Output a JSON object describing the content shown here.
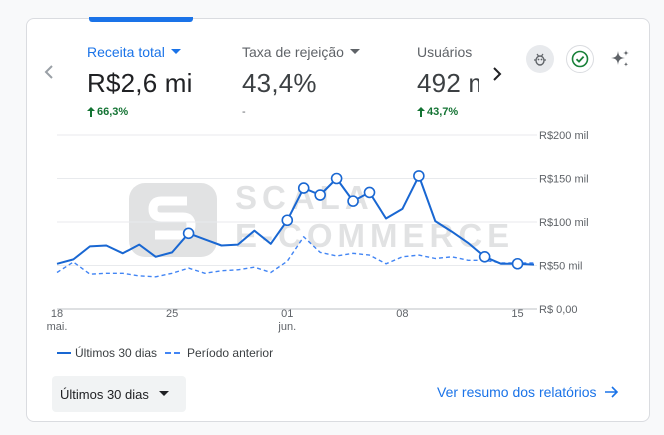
{
  "metrics": [
    {
      "label": "Receita total",
      "value": "R$2,6 mi",
      "delta": "66,3%",
      "delta_dir": "up",
      "active": true
    },
    {
      "label": "Taxa de rejeição",
      "value": "43,4%",
      "delta": "-",
      "delta_dir": "none",
      "active": false
    },
    {
      "label": "Usuários",
      "value": "492 m",
      "delta": "43,7%",
      "delta_dir": "up",
      "active": false
    }
  ],
  "icons": {
    "prev": "chevron-left-icon",
    "next": "chevron-right-icon",
    "compare": "bug-icon",
    "status": "check-circle-icon",
    "insights": "sparkle-icon"
  },
  "watermark": {
    "line1": "SCALA",
    "line2": "E-COMMERCE"
  },
  "chart_data": {
    "type": "line",
    "ylim": [
      0,
      200
    ],
    "y_ticks": [
      "R$ 0,00",
      "R$50 mil",
      "R$100 mil",
      "R$150 mil",
      "R$200 mil"
    ],
    "y_tick_values": [
      0,
      50,
      100,
      150,
      200
    ],
    "x_ticks": [
      {
        "label": "18",
        "sub": "mai.",
        "day": 0
      },
      {
        "label": "25",
        "sub": "",
        "day": 7
      },
      {
        "label": "01",
        "sub": "jun.",
        "day": 14
      },
      {
        "label": "08",
        "sub": "",
        "day": 21
      },
      {
        "label": "15",
        "sub": "",
        "day": 28
      }
    ],
    "series": [
      {
        "name": "Últimos 30 dias",
        "style": "solid",
        "color": "#1967d2",
        "values": [
          52,
          57,
          72,
          73,
          64,
          74,
          60,
          65,
          87,
          80,
          73,
          74,
          90,
          75,
          102,
          139,
          131,
          150,
          124,
          134,
          104,
          115,
          153,
          101,
          89,
          76,
          60,
          52,
          52,
          51
        ],
        "markers": [
          8,
          14,
          15,
          16,
          17,
          18,
          19,
          22,
          26,
          28
        ]
      },
      {
        "name": "Período anterior",
        "style": "dashed",
        "color": "#4285f4",
        "values": [
          42,
          54,
          40,
          41,
          41,
          38,
          37,
          41,
          47,
          41,
          44,
          45,
          48,
          42,
          55,
          83,
          65,
          61,
          64,
          62,
          52,
          60,
          62,
          58,
          60,
          56,
          56,
          53,
          53,
          53
        ]
      }
    ]
  },
  "legend": {
    "current": "Últimos 30 dias",
    "previous": "Período anterior"
  },
  "date_range": {
    "label": "Últimos 30 dias"
  },
  "report_link": {
    "label": "Ver resumo dos relatórios"
  }
}
